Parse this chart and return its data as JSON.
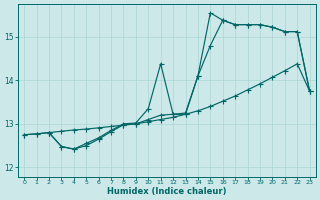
{
  "xlabel": "Humidex (Indice chaleur)",
  "background_color": "#cce8e8",
  "grid_color": "#aad4d4",
  "line_color": "#006666",
  "xlim_min": -0.5,
  "xlim_max": 23.5,
  "ylim_min": 11.78,
  "ylim_max": 15.75,
  "yticks": [
    12,
    13,
    14,
    15
  ],
  "xticks": [
    0,
    1,
    2,
    3,
    4,
    5,
    6,
    7,
    8,
    9,
    10,
    11,
    12,
    13,
    14,
    15,
    16,
    17,
    18,
    19,
    20,
    21,
    22,
    23
  ],
  "curve1_x": [
    0,
    1,
    2,
    3,
    4,
    5,
    6,
    7,
    8,
    9,
    10,
    11,
    12,
    13,
    14,
    15,
    16,
    17,
    18,
    19,
    20,
    21,
    22,
    23
  ],
  "curve1_y": [
    12.75,
    12.77,
    12.8,
    12.83,
    12.86,
    12.88,
    12.91,
    12.94,
    12.97,
    13.0,
    13.05,
    13.1,
    13.15,
    13.22,
    13.3,
    13.4,
    13.52,
    13.64,
    13.78,
    13.92,
    14.07,
    14.22,
    14.38,
    13.75
  ],
  "curve2_x": [
    0,
    1,
    2,
    3,
    4,
    5,
    6,
    7,
    8,
    9,
    10,
    11,
    12,
    13,
    14,
    15,
    16,
    17,
    18,
    19,
    20,
    21,
    22,
    23
  ],
  "curve2_y": [
    12.75,
    12.77,
    12.8,
    12.48,
    12.42,
    12.5,
    12.65,
    12.82,
    12.98,
    13.0,
    13.1,
    13.2,
    13.22,
    13.22,
    14.1,
    15.55,
    15.38,
    15.28,
    15.28,
    15.28,
    15.22,
    15.12,
    15.12,
    13.75
  ],
  "curve3_x": [
    2,
    3,
    4,
    5,
    6,
    7,
    8,
    9,
    10,
    11,
    12,
    13,
    14,
    15,
    16,
    17,
    18,
    19,
    20,
    21,
    22,
    23
  ],
  "curve3_y": [
    12.8,
    12.48,
    12.42,
    12.55,
    12.68,
    12.85,
    13.0,
    13.02,
    13.35,
    14.38,
    13.22,
    13.25,
    14.1,
    14.8,
    15.38,
    15.28,
    15.28,
    15.28,
    15.22,
    15.12,
    15.12,
    13.75
  ]
}
